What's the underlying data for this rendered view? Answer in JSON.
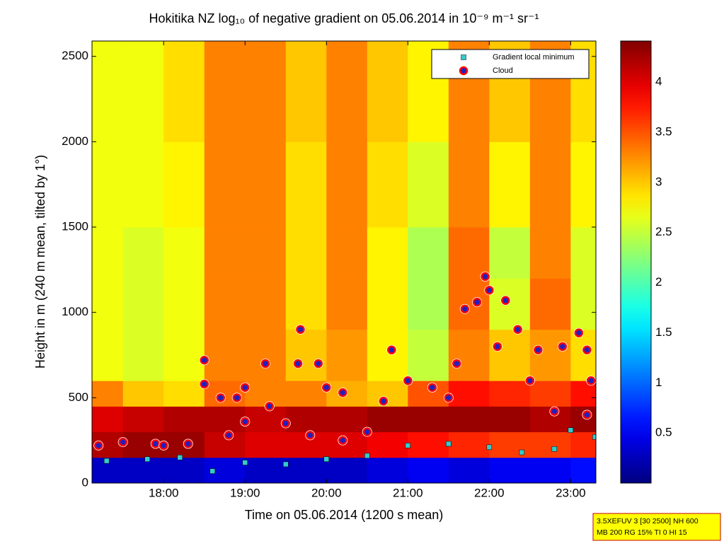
{
  "chart_data": {
    "type": "heatmap",
    "title": "Hokitika NZ log₁₀ of negative gradient on 05.06.2014 in 10⁻⁹ m⁻¹ sr⁻¹",
    "xlabel": "Time on 05.06.2014 (1200 s mean)",
    "ylabel": "Height in m (240 m mean, tilted by 1°)",
    "colormap": "jet",
    "x_edges": [
      17.12,
      17.5,
      18,
      18.5,
      19,
      19.5,
      20,
      20.5,
      21,
      21.5,
      22,
      22.5,
      23,
      23.31
    ],
    "y_edges": [
      0,
      150,
      300,
      450,
      600,
      900,
      1200,
      1500,
      2000,
      2590
    ],
    "z": [
      [
        0.3,
        0.3,
        0.3,
        0.4,
        0.3,
        0.3,
        0.3,
        0.4,
        0.5,
        0.4,
        0.5,
        0.5,
        0.6
      ],
      [
        4.2,
        4.3,
        4.3,
        4.1,
        4.0,
        4.0,
        4.0,
        3.9,
        3.8,
        3.7,
        3.6,
        3.6,
        3.7
      ],
      [
        4.0,
        4.1,
        4.2,
        4.2,
        4.1,
        4.2,
        4.2,
        4.3,
        4.3,
        4.3,
        4.3,
        4.2,
        4.3
      ],
      [
        3.3,
        3.0,
        2.9,
        3.4,
        3.3,
        3.3,
        3.1,
        3.0,
        3.5,
        3.8,
        3.7,
        3.6,
        3.8
      ],
      [
        2.7,
        2.6,
        2.7,
        3.3,
        3.3,
        3.0,
        3.2,
        2.8,
        2.5,
        3.3,
        3.0,
        3.2,
        2.9
      ],
      [
        2.7,
        2.6,
        2.7,
        3.3,
        3.3,
        2.9,
        3.3,
        2.8,
        2.4,
        3.4,
        2.6,
        3.4,
        2.6
      ],
      [
        2.7,
        2.6,
        2.7,
        3.3,
        3.3,
        2.9,
        3.3,
        2.8,
        2.4,
        3.4,
        2.5,
        3.3,
        2.6
      ],
      [
        2.7,
        2.7,
        2.8,
        3.3,
        3.3,
        2.9,
        3.3,
        2.9,
        2.6,
        3.3,
        2.8,
        3.3,
        2.8
      ],
      [
        2.7,
        2.7,
        2.9,
        3.3,
        3.3,
        3.0,
        3.3,
        3.0,
        2.8,
        3.3,
        3.0,
        3.3,
        2.9
      ]
    ],
    "clim": [
      0,
      4.41
    ],
    "cticks": [
      0.5,
      1,
      1.5,
      2,
      2.5,
      3,
      3.5,
      4
    ],
    "xlim": [
      17.12,
      23.31
    ],
    "xticks": [
      {
        "value": 18,
        "label": "18:00"
      },
      {
        "value": 19,
        "label": "19:00"
      },
      {
        "value": 20,
        "label": "20:00"
      },
      {
        "value": 21,
        "label": "21:00"
      },
      {
        "value": 22,
        "label": "22:00"
      },
      {
        "value": 23,
        "label": "23:00"
      }
    ],
    "ylim": [
      0,
      2590
    ],
    "yticks": [
      0,
      500,
      1000,
      1500,
      2000,
      2500
    ],
    "series": [
      {
        "name": "Gradient local minimum",
        "marker": "square",
        "color": "#33cccc",
        "x": [
          17.3,
          17.8,
          18.2,
          18.6,
          19.0,
          19.5,
          20.0,
          20.5,
          21.0,
          21.5,
          22.0,
          22.4,
          22.8,
          23.0,
          23.3
        ],
        "values": [
          130,
          140,
          150,
          70,
          120,
          110,
          140,
          160,
          220,
          230,
          210,
          180,
          200,
          310,
          270
        ]
      },
      {
        "name": "Cloud",
        "marker": "circle",
        "color": "#ff0000",
        "x": [
          17.2,
          17.5,
          17.9,
          18.3,
          18.5,
          18.5,
          18.7,
          18.9,
          19.0,
          19.0,
          19.25,
          19.3,
          19.5,
          19.68,
          19.65,
          19.9,
          20.0,
          20.2,
          20.5,
          20.7,
          20.8,
          21.0,
          21.3,
          21.6,
          21.7,
          21.85,
          21.95,
          22.0,
          22.1,
          22.2,
          22.35,
          22.5,
          22.6,
          22.9,
          23.1,
          23.2,
          23.25,
          23.2,
          22.8,
          21.5,
          20.2,
          19.8,
          18.0,
          18.8
        ],
        "values": [
          220,
          240,
          230,
          230,
          720,
          580,
          500,
          500,
          360,
          560,
          700,
          450,
          350,
          900,
          700,
          700,
          560,
          530,
          300,
          480,
          780,
          600,
          560,
          700,
          1020,
          1060,
          1210,
          1130,
          800,
          1070,
          900,
          600,
          780,
          800,
          880,
          780,
          600,
          400,
          420,
          500,
          250,
          280,
          220,
          280
        ]
      }
    ],
    "annotation": [
      "3.5XEFUV 3 [30 2500] NH 600",
      "MB 200 RG 15% TI 0 HI 15"
    ]
  }
}
